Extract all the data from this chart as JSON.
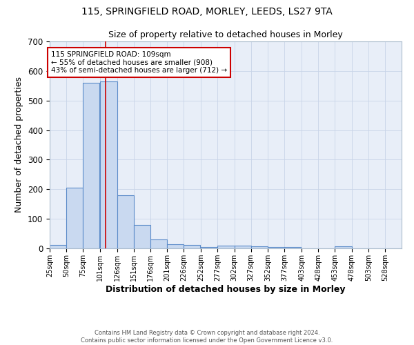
{
  "title1": "115, SPRINGFIELD ROAD, MORLEY, LEEDS, LS27 9TA",
  "title2": "Size of property relative to detached houses in Morley",
  "xlabel": "Distribution of detached houses by size in Morley",
  "ylabel": "Number of detached properties",
  "bar_left_edges": [
    25,
    50,
    75,
    101,
    126,
    151,
    176,
    201,
    226,
    252,
    277,
    302,
    327,
    352,
    377,
    403,
    428,
    453,
    478,
    503,
    528
  ],
  "bar_heights": [
    12,
    205,
    560,
    565,
    180,
    80,
    30,
    15,
    12,
    5,
    10,
    10,
    8,
    5,
    5,
    0,
    0,
    6,
    0,
    0,
    0
  ],
  "bar_widths": [
    25,
    25,
    25,
    25,
    25,
    25,
    25,
    25,
    25,
    25,
    25,
    25,
    25,
    25,
    25,
    25,
    25,
    25,
    25,
    25,
    25
  ],
  "bar_color": "#c9d9f0",
  "bar_edge_color": "#5b8bc9",
  "vline_x": 109,
  "vline_color": "#cc0000",
  "ylim": [
    0,
    700
  ],
  "yticks": [
    0,
    100,
    200,
    300,
    400,
    500,
    600,
    700
  ],
  "xtick_labels": [
    "25sqm",
    "50sqm",
    "75sqm",
    "101sqm",
    "126sqm",
    "151sqm",
    "176sqm",
    "201sqm",
    "226sqm",
    "252sqm",
    "277sqm",
    "302sqm",
    "327sqm",
    "352sqm",
    "377sqm",
    "403sqm",
    "428sqm",
    "453sqm",
    "478sqm",
    "503sqm",
    "528sqm"
  ],
  "xtick_positions": [
    25,
    50,
    75,
    101,
    126,
    151,
    176,
    201,
    226,
    252,
    277,
    302,
    327,
    352,
    377,
    403,
    428,
    453,
    478,
    503,
    528
  ],
  "annotation_line1": "115 SPRINGFIELD ROAD: 109sqm",
  "annotation_line2": "← 55% of detached houses are smaller (908)",
  "annotation_line3": "43% of semi-detached houses are larger (712) →",
  "annotation_box_color": "#ffffff",
  "annotation_box_edge_color": "#cc0000",
  "grid_color": "#c8d4e8",
  "background_color": "#e8eef8",
  "footer_line1": "Contains HM Land Registry data © Crown copyright and database right 2024.",
  "footer_line2": "Contains public sector information licensed under the Open Government Licence v3.0.",
  "title1_fontsize": 10,
  "title2_fontsize": 9,
  "xlabel_fontsize": 9,
  "ylabel_fontsize": 9,
  "annotation_fontsize": 7.5,
  "footer_fontsize": 6.0,
  "xlim_left": 25,
  "xlim_right": 553
}
